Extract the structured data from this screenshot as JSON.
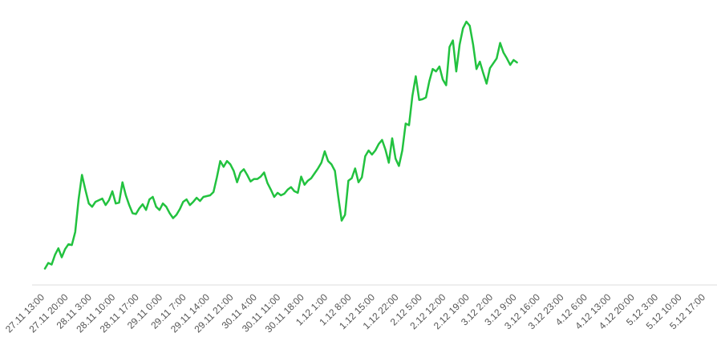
{
  "chart_data": {
    "type": "line",
    "title": "",
    "xlabel": "",
    "ylabel": "",
    "grid": false,
    "legend": "none",
    "line_color": "#22c23f",
    "axis_color": "#dddddd",
    "tick_labels": [
      "27.11 13:00",
      "27.11 20:00",
      "28.11 3:00",
      "28.11 10:00",
      "28.11 17:00",
      "29.11 0:00",
      "29.11 7:00",
      "29.11 14:00",
      "29.11 21:00",
      "30.11 4:00",
      "30.11 11:00",
      "30.11 18:00",
      "1.12 1:00",
      "1.12 8:00",
      "1.12 15:00",
      "1.12 22:00",
      "2.12 5:00",
      "2.12 12:00",
      "2.12 19:00",
      "3.12 2:00",
      "3.12 9:00",
      "3.12 16:00",
      "3.12 23:00",
      "4.12 6:00",
      "4.12 13:00",
      "4.12 20:00",
      "5.12 3:00",
      "5.12 10:00",
      "5.12 17:00"
    ],
    "hours_per_tick": 7,
    "ylim": [
      0,
      330
    ],
    "series": [
      {
        "points": [
          [
            0,
            20
          ],
          [
            1,
            27
          ],
          [
            2,
            25
          ],
          [
            3,
            37
          ],
          [
            4,
            45
          ],
          [
            5,
            34
          ],
          [
            6,
            44
          ],
          [
            7,
            50
          ],
          [
            8,
            49
          ],
          [
            9,
            65
          ],
          [
            10,
            105
          ],
          [
            11,
            135
          ],
          [
            12,
            117
          ],
          [
            13,
            100
          ],
          [
            14,
            96
          ],
          [
            15,
            102
          ],
          [
            16,
            104
          ],
          [
            17,
            106
          ],
          [
            18,
            98
          ],
          [
            19,
            104
          ],
          [
            20,
            115
          ],
          [
            21,
            100
          ],
          [
            22,
            101
          ],
          [
            23,
            126
          ],
          [
            24,
            110
          ],
          [
            25,
            98
          ],
          [
            26,
            88
          ],
          [
            27,
            87
          ],
          [
            28,
            94
          ],
          [
            29,
            99
          ],
          [
            30,
            92
          ],
          [
            31,
            105
          ],
          [
            32,
            108
          ],
          [
            33,
            96
          ],
          [
            34,
            92
          ],
          [
            35,
            100
          ],
          [
            36,
            96
          ],
          [
            37,
            88
          ],
          [
            38,
            82
          ],
          [
            39,
            86
          ],
          [
            40,
            93
          ],
          [
            41,
            102
          ],
          [
            42,
            105
          ],
          [
            43,
            98
          ],
          [
            44,
            102
          ],
          [
            45,
            107
          ],
          [
            46,
            103
          ],
          [
            47,
            108
          ],
          [
            48,
            109
          ],
          [
            49,
            110
          ],
          [
            50,
            114
          ],
          [
            51,
            132
          ],
          [
            52,
            152
          ],
          [
            53,
            145
          ],
          [
            54,
            152
          ],
          [
            55,
            148
          ],
          [
            56,
            140
          ],
          [
            57,
            126
          ],
          [
            58,
            138
          ],
          [
            59,
            142
          ],
          [
            60,
            135
          ],
          [
            61,
            127
          ],
          [
            62,
            130
          ],
          [
            63,
            130
          ],
          [
            64,
            133
          ],
          [
            65,
            138
          ],
          [
            66,
            125
          ],
          [
            67,
            117
          ],
          [
            68,
            108
          ],
          [
            69,
            113
          ],
          [
            70,
            110
          ],
          [
            71,
            112
          ],
          [
            72,
            117
          ],
          [
            73,
            120
          ],
          [
            74,
            115
          ],
          [
            75,
            113
          ],
          [
            76,
            133
          ],
          [
            77,
            123
          ],
          [
            78,
            128
          ],
          [
            79,
            131
          ],
          [
            80,
            137
          ],
          [
            81,
            143
          ],
          [
            82,
            150
          ],
          [
            83,
            164
          ],
          [
            84,
            152
          ],
          [
            85,
            148
          ],
          [
            86,
            140
          ],
          [
            87,
            108
          ],
          [
            88,
            79
          ],
          [
            89,
            86
          ],
          [
            90,
            128
          ],
          [
            91,
            131
          ],
          [
            92,
            143
          ],
          [
            93,
            126
          ],
          [
            94,
            132
          ],
          [
            95,
            158
          ],
          [
            96,
            165
          ],
          [
            97,
            160
          ],
          [
            98,
            165
          ],
          [
            99,
            173
          ],
          [
            100,
            178
          ],
          [
            101,
            166
          ],
          [
            102,
            150
          ],
          [
            103,
            180
          ],
          [
            104,
            155
          ],
          [
            105,
            146
          ],
          [
            106,
            165
          ],
          [
            107,
            198
          ],
          [
            108,
            196
          ],
          [
            109,
            232
          ],
          [
            110,
            256
          ],
          [
            111,
            227
          ],
          [
            112,
            228
          ],
          [
            113,
            230
          ],
          [
            114,
            250
          ],
          [
            115,
            265
          ],
          [
            116,
            262
          ],
          [
            117,
            268
          ],
          [
            118,
            252
          ],
          [
            119,
            245
          ],
          [
            120,
            292
          ],
          [
            121,
            300
          ],
          [
            122,
            262
          ],
          [
            123,
            295
          ],
          [
            124,
            315
          ],
          [
            125,
            323
          ],
          [
            126,
            318
          ],
          [
            127,
            295
          ],
          [
            128,
            265
          ],
          [
            129,
            274
          ],
          [
            130,
            260
          ],
          [
            131,
            247
          ],
          [
            132,
            266
          ],
          [
            133,
            272
          ],
          [
            134,
            278
          ],
          [
            135,
            297
          ],
          [
            136,
            285
          ],
          [
            137,
            278
          ],
          [
            138,
            270
          ],
          [
            139,
            276
          ],
          [
            140,
            273
          ]
        ]
      }
    ]
  }
}
